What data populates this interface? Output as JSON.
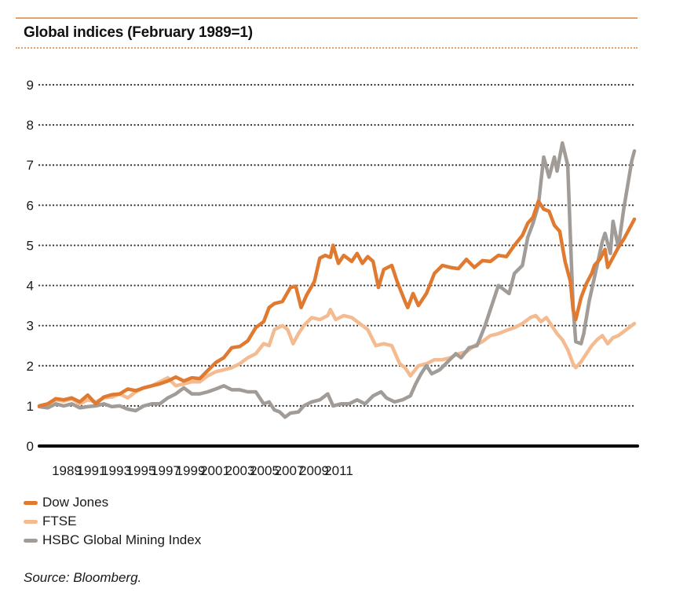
{
  "chart_data": {
    "type": "line",
    "title": "Global indices (February 1989=1)",
    "xlabel": "",
    "ylabel": "",
    "ylim": [
      0,
      9
    ],
    "xlim": [
      1989.08,
      2011.4
    ],
    "yticks": [
      "0",
      "1",
      "2",
      "3",
      "4",
      "5",
      "6",
      "7",
      "8",
      "9"
    ],
    "xticks": [
      "1989",
      "1991",
      "1993",
      "1995",
      "1997",
      "1999",
      "2001",
      "2003",
      "2005",
      "2007",
      "2009",
      "2011"
    ],
    "grid": "horizontal-dotted",
    "legend_position": "bottom-left",
    "series": [
      {
        "name": "Dow Jones",
        "color": "#e07a30",
        "points": [
          [
            1989.08,
            1.0
          ],
          [
            1989.4,
            1.05
          ],
          [
            1989.7,
            1.18
          ],
          [
            1990.0,
            1.15
          ],
          [
            1990.3,
            1.2
          ],
          [
            1990.6,
            1.1
          ],
          [
            1990.9,
            1.27
          ],
          [
            1991.2,
            1.05
          ],
          [
            1991.5,
            1.22
          ],
          [
            1991.8,
            1.28
          ],
          [
            1992.1,
            1.3
          ],
          [
            1992.4,
            1.42
          ],
          [
            1992.7,
            1.38
          ],
          [
            1993.0,
            1.45
          ],
          [
            1993.3,
            1.5
          ],
          [
            1993.6,
            1.55
          ],
          [
            1993.9,
            1.62
          ],
          [
            1994.2,
            1.72
          ],
          [
            1994.5,
            1.62
          ],
          [
            1994.8,
            1.7
          ],
          [
            1995.1,
            1.68
          ],
          [
            1995.4,
            1.88
          ],
          [
            1995.7,
            2.08
          ],
          [
            1996.0,
            2.2
          ],
          [
            1996.3,
            2.45
          ],
          [
            1996.6,
            2.48
          ],
          [
            1996.9,
            2.62
          ],
          [
            1997.2,
            2.95
          ],
          [
            1997.5,
            3.1
          ],
          [
            1997.7,
            3.45
          ],
          [
            1997.9,
            3.55
          ],
          [
            1998.2,
            3.6
          ],
          [
            1998.5,
            3.95
          ],
          [
            1998.7,
            3.98
          ],
          [
            1998.9,
            3.45
          ],
          [
            1999.1,
            3.75
          ],
          [
            1999.4,
            4.1
          ],
          [
            1999.6,
            4.68
          ],
          [
            1999.8,
            4.75
          ],
          [
            2000.0,
            4.7
          ],
          [
            2000.1,
            5.0
          ],
          [
            2000.3,
            4.55
          ],
          [
            2000.5,
            4.75
          ],
          [
            2000.8,
            4.6
          ],
          [
            2001.0,
            4.8
          ],
          [
            2001.2,
            4.55
          ],
          [
            2001.4,
            4.72
          ],
          [
            2001.6,
            4.6
          ],
          [
            2001.8,
            3.95
          ],
          [
            2002.0,
            4.4
          ],
          [
            2002.3,
            4.5
          ],
          [
            2002.5,
            4.1
          ],
          [
            2002.8,
            3.6
          ],
          [
            2002.9,
            3.45
          ],
          [
            2003.1,
            3.8
          ],
          [
            2003.3,
            3.5
          ],
          [
            2003.6,
            3.8
          ],
          [
            2003.9,
            4.3
          ],
          [
            2004.2,
            4.5
          ],
          [
            2004.5,
            4.45
          ],
          [
            2004.8,
            4.42
          ],
          [
            2005.1,
            4.65
          ],
          [
            2005.4,
            4.45
          ],
          [
            2005.7,
            4.62
          ],
          [
            2006.0,
            4.6
          ],
          [
            2006.3,
            4.75
          ],
          [
            2006.6,
            4.72
          ],
          [
            2006.9,
            5.0
          ],
          [
            2007.2,
            5.25
          ],
          [
            2007.4,
            5.55
          ],
          [
            2007.6,
            5.7
          ],
          [
            2007.8,
            6.1
          ],
          [
            2008.0,
            5.9
          ],
          [
            2008.2,
            5.85
          ],
          [
            2008.4,
            5.5
          ],
          [
            2008.6,
            5.35
          ],
          [
            2008.8,
            4.6
          ],
          [
            2009.0,
            4.1
          ],
          [
            2009.1,
            3.4
          ],
          [
            2009.2,
            3.15
          ],
          [
            2009.4,
            3.7
          ],
          [
            2009.6,
            4.05
          ],
          [
            2009.8,
            4.3
          ],
          [
            2009.9,
            4.5
          ],
          [
            2010.1,
            4.65
          ],
          [
            2010.3,
            4.9
          ],
          [
            2010.4,
            4.45
          ],
          [
            2010.6,
            4.7
          ],
          [
            2010.8,
            4.95
          ],
          [
            2011.0,
            5.15
          ],
          [
            2011.2,
            5.4
          ],
          [
            2011.4,
            5.65
          ]
        ]
      },
      {
        "name": "FTSE",
        "color": "#f4bb90",
        "points": [
          [
            1989.08,
            1.0
          ],
          [
            1989.4,
            1.05
          ],
          [
            1989.7,
            1.15
          ],
          [
            1990.0,
            1.12
          ],
          [
            1990.3,
            1.18
          ],
          [
            1990.6,
            1.05
          ],
          [
            1990.9,
            1.15
          ],
          [
            1991.2,
            1.1
          ],
          [
            1991.5,
            1.2
          ],
          [
            1991.8,
            1.22
          ],
          [
            1992.1,
            1.3
          ],
          [
            1992.4,
            1.2
          ],
          [
            1992.7,
            1.35
          ],
          [
            1993.0,
            1.45
          ],
          [
            1993.3,
            1.5
          ],
          [
            1993.6,
            1.6
          ],
          [
            1993.9,
            1.7
          ],
          [
            1994.2,
            1.5
          ],
          [
            1994.5,
            1.55
          ],
          [
            1994.8,
            1.6
          ],
          [
            1995.1,
            1.6
          ],
          [
            1995.4,
            1.75
          ],
          [
            1995.7,
            1.85
          ],
          [
            1996.0,
            1.9
          ],
          [
            1996.3,
            1.95
          ],
          [
            1996.6,
            2.05
          ],
          [
            1996.9,
            2.2
          ],
          [
            1997.2,
            2.3
          ],
          [
            1997.5,
            2.55
          ],
          [
            1997.7,
            2.5
          ],
          [
            1997.9,
            2.9
          ],
          [
            1998.2,
            3.0
          ],
          [
            1998.4,
            2.9
          ],
          [
            1998.6,
            2.55
          ],
          [
            1998.8,
            2.8
          ],
          [
            1999.0,
            3.0
          ],
          [
            1999.3,
            3.2
          ],
          [
            1999.6,
            3.15
          ],
          [
            1999.9,
            3.25
          ],
          [
            2000.0,
            3.4
          ],
          [
            2000.2,
            3.15
          ],
          [
            2000.5,
            3.25
          ],
          [
            2000.8,
            3.2
          ],
          [
            2001.1,
            3.05
          ],
          [
            2001.4,
            2.9
          ],
          [
            2001.7,
            2.5
          ],
          [
            2002.0,
            2.55
          ],
          [
            2002.3,
            2.5
          ],
          [
            2002.6,
            2.05
          ],
          [
            2002.8,
            1.95
          ],
          [
            2003.0,
            1.75
          ],
          [
            2003.3,
            2.0
          ],
          [
            2003.6,
            2.05
          ],
          [
            2003.9,
            2.15
          ],
          [
            2004.2,
            2.15
          ],
          [
            2004.5,
            2.2
          ],
          [
            2004.8,
            2.3
          ],
          [
            2005.1,
            2.35
          ],
          [
            2005.4,
            2.5
          ],
          [
            2005.7,
            2.6
          ],
          [
            2006.0,
            2.75
          ],
          [
            2006.3,
            2.8
          ],
          [
            2006.6,
            2.88
          ],
          [
            2006.9,
            2.95
          ],
          [
            2007.2,
            3.05
          ],
          [
            2007.5,
            3.2
          ],
          [
            2007.7,
            3.25
          ],
          [
            2007.9,
            3.1
          ],
          [
            2008.1,
            3.2
          ],
          [
            2008.3,
            3.0
          ],
          [
            2008.5,
            2.8
          ],
          [
            2008.7,
            2.65
          ],
          [
            2008.9,
            2.4
          ],
          [
            2009.1,
            2.05
          ],
          [
            2009.2,
            1.95
          ],
          [
            2009.4,
            2.1
          ],
          [
            2009.6,
            2.3
          ],
          [
            2009.8,
            2.5
          ],
          [
            2010.0,
            2.65
          ],
          [
            2010.2,
            2.75
          ],
          [
            2010.4,
            2.55
          ],
          [
            2010.6,
            2.7
          ],
          [
            2010.8,
            2.75
          ],
          [
            2011.0,
            2.85
          ],
          [
            2011.2,
            2.95
          ],
          [
            2011.4,
            3.05
          ]
        ]
      },
      {
        "name": "HSBC Global Mining Index",
        "color": "#a19c98",
        "points": [
          [
            1989.08,
            0.98
          ],
          [
            1989.4,
            0.95
          ],
          [
            1989.7,
            1.05
          ],
          [
            1990.0,
            1.0
          ],
          [
            1990.3,
            1.05
          ],
          [
            1990.6,
            0.95
          ],
          [
            1990.9,
            0.98
          ],
          [
            1991.2,
            1.0
          ],
          [
            1991.5,
            1.05
          ],
          [
            1991.8,
            0.98
          ],
          [
            1992.1,
            1.0
          ],
          [
            1992.4,
            0.92
          ],
          [
            1992.7,
            0.88
          ],
          [
            1993.0,
            1.0
          ],
          [
            1993.3,
            1.05
          ],
          [
            1993.6,
            1.05
          ],
          [
            1993.9,
            1.2
          ],
          [
            1994.2,
            1.3
          ],
          [
            1994.5,
            1.45
          ],
          [
            1994.8,
            1.3
          ],
          [
            1995.1,
            1.3
          ],
          [
            1995.4,
            1.35
          ],
          [
            1995.7,
            1.42
          ],
          [
            1996.0,
            1.5
          ],
          [
            1996.3,
            1.4
          ],
          [
            1996.6,
            1.4
          ],
          [
            1996.9,
            1.35
          ],
          [
            1997.2,
            1.35
          ],
          [
            1997.5,
            1.05
          ],
          [
            1997.7,
            1.1
          ],
          [
            1997.9,
            0.9
          ],
          [
            1998.1,
            0.85
          ],
          [
            1998.3,
            0.72
          ],
          [
            1998.5,
            0.82
          ],
          [
            1998.8,
            0.85
          ],
          [
            1999.0,
            1.0
          ],
          [
            1999.3,
            1.1
          ],
          [
            1999.6,
            1.15
          ],
          [
            1999.9,
            1.3
          ],
          [
            2000.1,
            1.0
          ],
          [
            2000.4,
            1.05
          ],
          [
            2000.7,
            1.05
          ],
          [
            2001.0,
            1.15
          ],
          [
            2001.3,
            1.05
          ],
          [
            2001.6,
            1.25
          ],
          [
            2001.9,
            1.35
          ],
          [
            2002.1,
            1.2
          ],
          [
            2002.4,
            1.1
          ],
          [
            2002.7,
            1.15
          ],
          [
            2003.0,
            1.25
          ],
          [
            2003.2,
            1.55
          ],
          [
            2003.4,
            1.8
          ],
          [
            2003.6,
            2.0
          ],
          [
            2003.8,
            1.8
          ],
          [
            2004.1,
            1.9
          ],
          [
            2004.4,
            2.1
          ],
          [
            2004.7,
            2.3
          ],
          [
            2004.9,
            2.2
          ],
          [
            2005.2,
            2.45
          ],
          [
            2005.5,
            2.5
          ],
          [
            2005.8,
            3.0
          ],
          [
            2006.1,
            3.6
          ],
          [
            2006.3,
            4.0
          ],
          [
            2006.5,
            3.9
          ],
          [
            2006.7,
            3.8
          ],
          [
            2006.9,
            4.3
          ],
          [
            2007.2,
            4.5
          ],
          [
            2007.4,
            5.2
          ],
          [
            2007.6,
            5.55
          ],
          [
            2007.8,
            6.0
          ],
          [
            2008.0,
            7.2
          ],
          [
            2008.2,
            6.7
          ],
          [
            2008.4,
            7.2
          ],
          [
            2008.5,
            6.85
          ],
          [
            2008.7,
            7.55
          ],
          [
            2008.9,
            7.0
          ],
          [
            2009.0,
            5.2
          ],
          [
            2009.1,
            3.5
          ],
          [
            2009.2,
            2.6
          ],
          [
            2009.4,
            2.55
          ],
          [
            2009.5,
            2.8
          ],
          [
            2009.7,
            3.6
          ],
          [
            2009.9,
            4.2
          ],
          [
            2010.0,
            4.5
          ],
          [
            2010.2,
            5.1
          ],
          [
            2010.3,
            5.3
          ],
          [
            2010.5,
            4.8
          ],
          [
            2010.6,
            5.6
          ],
          [
            2010.8,
            4.95
          ],
          [
            2011.0,
            5.9
          ],
          [
            2011.1,
            6.3
          ],
          [
            2011.3,
            7.1
          ],
          [
            2011.4,
            7.35
          ]
        ]
      }
    ]
  },
  "header": {
    "title": "Global indices (February 1989=1)"
  },
  "legend": [
    {
      "label": "Dow Jones",
      "color": "#e07a30"
    },
    {
      "label": "FTSE",
      "color": "#f4bb90"
    },
    {
      "label": "HSBC Global Mining Index",
      "color": "#a19c98"
    }
  ],
  "footer": {
    "source": "Source: Bloomberg."
  }
}
